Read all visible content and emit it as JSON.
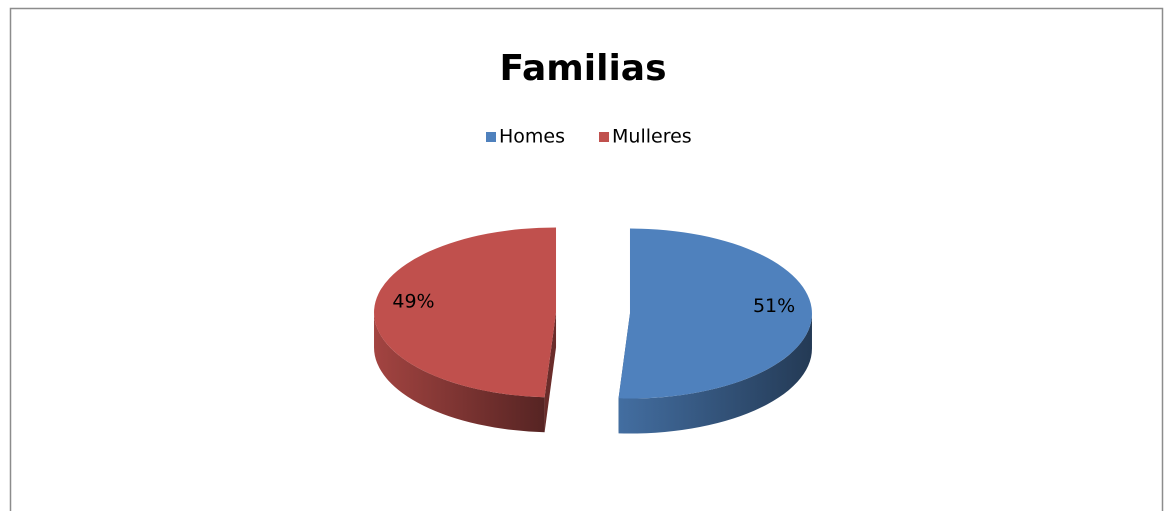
{
  "chart_data": {
    "type": "pie",
    "title": "Familias",
    "categories": [
      "Homes",
      "Mulleres"
    ],
    "values": [
      51,
      49
    ],
    "value_labels": [
      "51%",
      "49%"
    ],
    "colors": [
      "#4f81bd",
      "#c0504d"
    ],
    "legend": "top"
  }
}
